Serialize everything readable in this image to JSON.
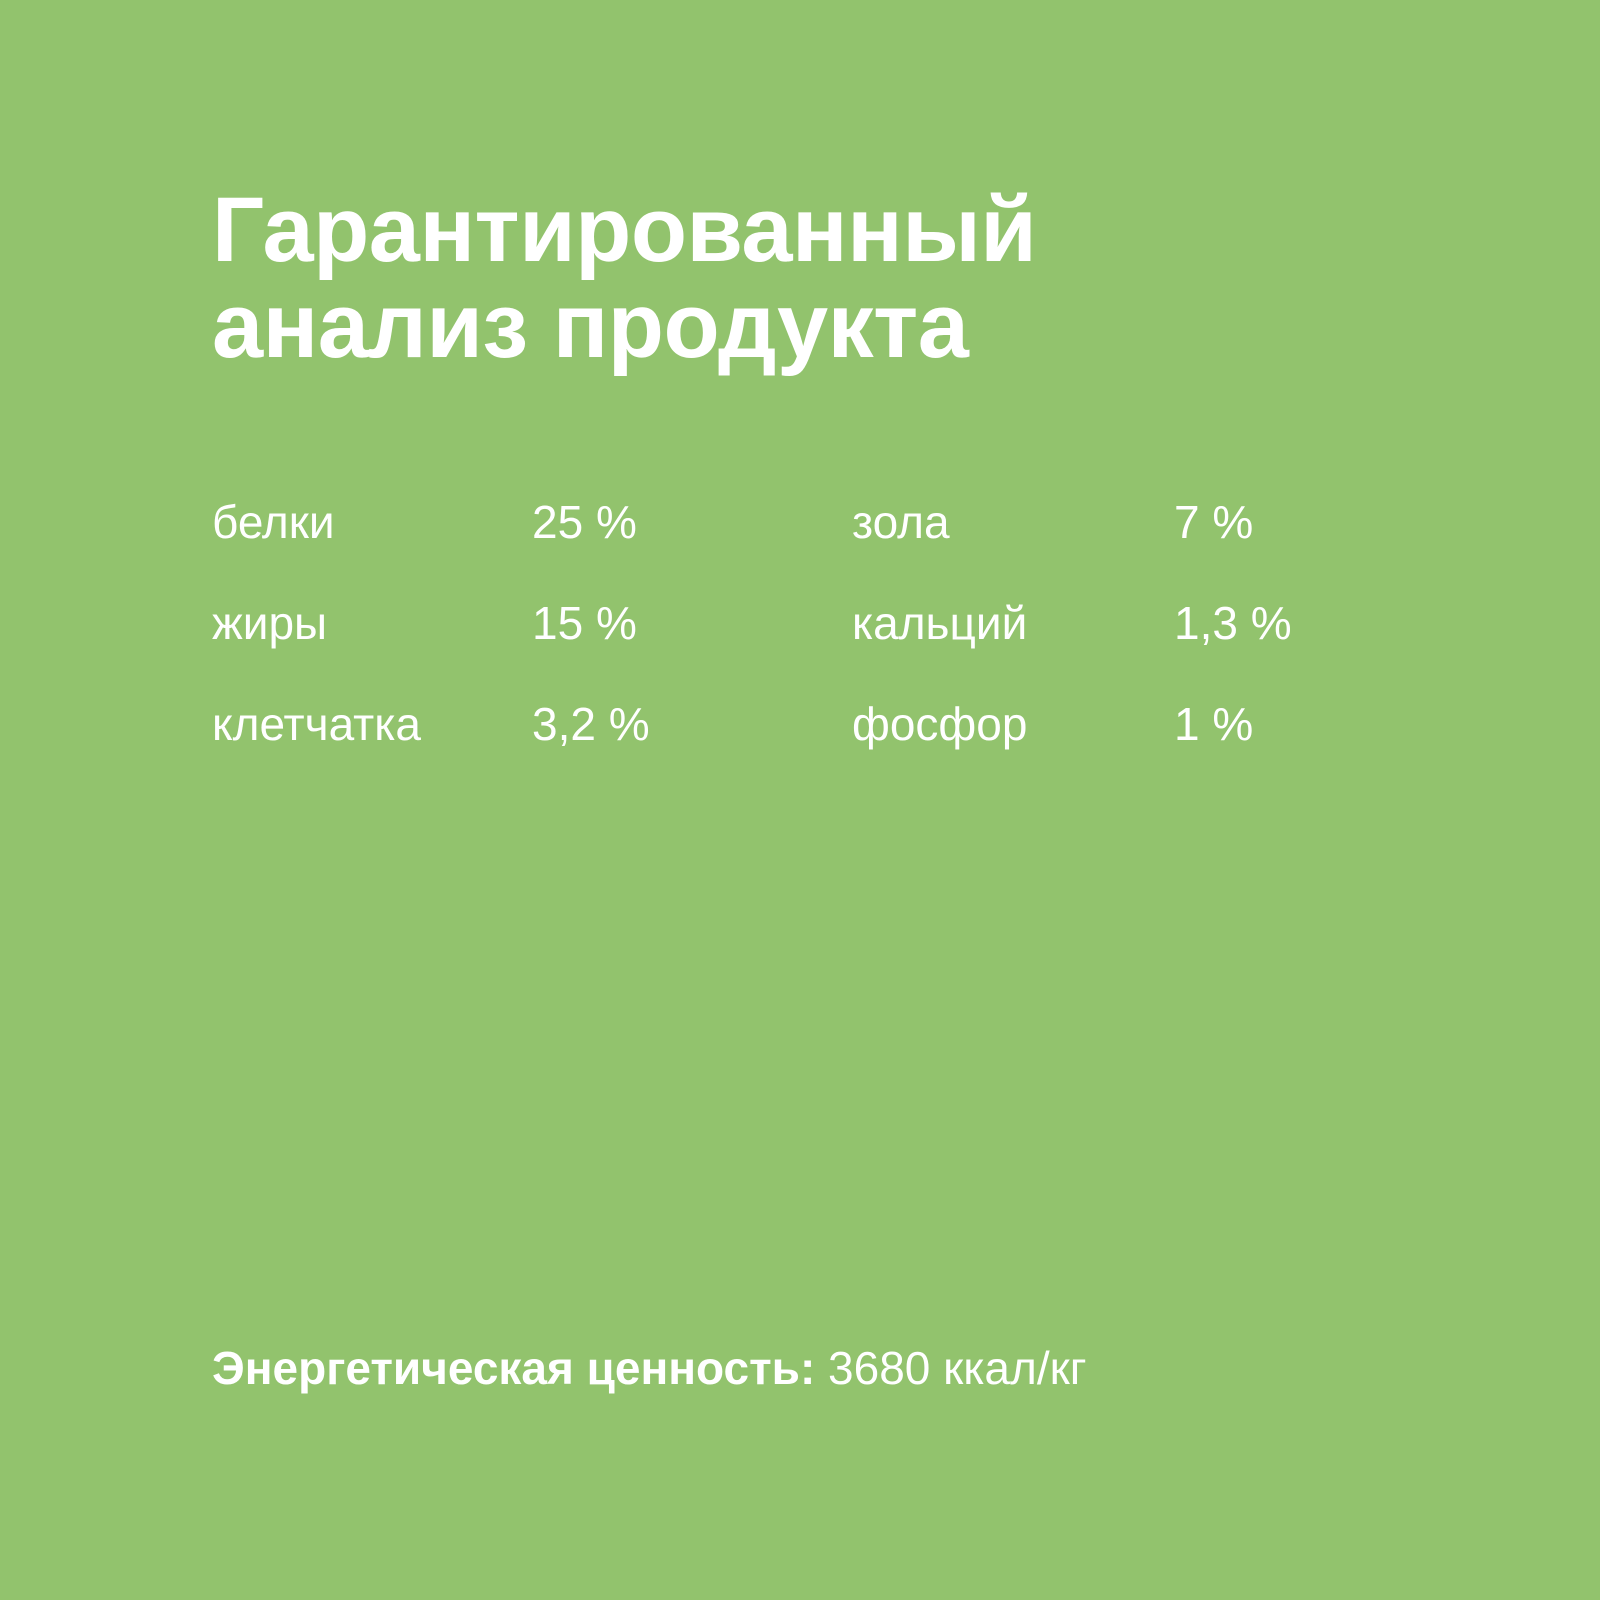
{
  "colors": {
    "background": "#92c36d",
    "text": "#ffffff"
  },
  "title": {
    "line1": "Гарантированный",
    "line2": "анализ продукта"
  },
  "nutrients": [
    {
      "left_name": "белки",
      "left_value": "25 %",
      "right_name": "зола",
      "right_value": "7 %"
    },
    {
      "left_name": "жиры",
      "left_value": "15 %",
      "right_name": "кальций",
      "right_value": "1,3 %"
    },
    {
      "left_name": "клетчатка",
      "left_value": "3,2 %",
      "right_name": "фосфор",
      "right_value": "1 %"
    }
  ],
  "energy": {
    "label": "Энергетическая ценность:",
    "value": "3680 ккал/кг"
  }
}
